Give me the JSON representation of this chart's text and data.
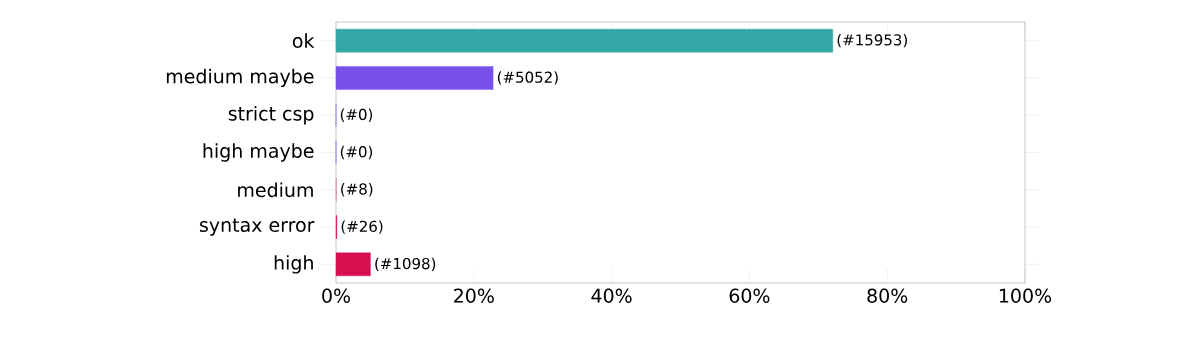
{
  "chart_data": {
    "type": "bar",
    "orientation": "horizontal",
    "categories": [
      "ok",
      "medium maybe",
      "strict csp",
      "high maybe",
      "medium",
      "syntax error",
      "high"
    ],
    "values": [
      72.1,
      22.8,
      0,
      0,
      0.04,
      0.12,
      5.0
    ],
    "colors": [
      "#33a6a6",
      "#7750ec",
      "#7750ec",
      "#7750ec",
      "#e07a9a",
      "#d6104f",
      "#d6104f"
    ],
    "annotations": [
      {
        "text": "(#15953)",
        "x": 72.1,
        "y": "ok"
      },
      {
        "text": "(#5052)",
        "x": 22.8,
        "y": "medium maybe"
      },
      {
        "text": "(#0)",
        "x": 0,
        "y": "strict csp"
      },
      {
        "text": "(#0)",
        "x": 0,
        "y": "high maybe"
      },
      {
        "text": "(#8)",
        "x": 0.04,
        "y": "medium"
      },
      {
        "text": "(#26)",
        "x": 0.12,
        "y": "syntax error"
      },
      {
        "text": "(#1098)",
        "x": 5.0,
        "y": "high"
      }
    ],
    "xlim": [
      0,
      100
    ],
    "xticks": [
      {
        "value": 0,
        "label": "0%"
      },
      {
        "value": 20,
        "label": "20%"
      },
      {
        "value": 40,
        "label": "40%"
      },
      {
        "value": 60,
        "label": "60%"
      },
      {
        "value": 80,
        "label": "80%"
      },
      {
        "value": 100,
        "label": "100%"
      }
    ],
    "grid": false
  }
}
